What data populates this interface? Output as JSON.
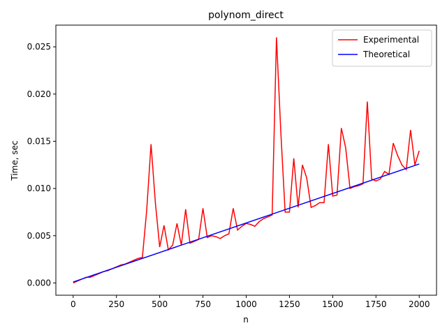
{
  "chart_data": {
    "type": "line",
    "title": "polynom_direct",
    "xlabel": "n",
    "ylabel": "Time, sec",
    "xlim": [
      -100,
      2100
    ],
    "xticks": [
      0,
      250,
      500,
      750,
      1000,
      1250,
      1500,
      1750,
      2000
    ],
    "ylim": [
      -0.0013,
      0.0273
    ],
    "yticks": [
      {
        "value": 0,
        "label": "0.000"
      },
      {
        "value": 0.005,
        "label": "0.005"
      },
      {
        "value": 0.01,
        "label": "0.010"
      },
      {
        "value": 0.015,
        "label": "0.015"
      },
      {
        "value": 0.02,
        "label": "0.020"
      },
      {
        "value": 0.025,
        "label": "0.025"
      }
    ],
    "legend": "upper right",
    "series": [
      {
        "name": "Experimental",
        "color": "#ff0000",
        "x": [
          0,
          25,
          50,
          75,
          100,
          125,
          150,
          175,
          200,
          225,
          250,
          275,
          300,
          325,
          350,
          375,
          400,
          425,
          450,
          475,
          500,
          525,
          550,
          575,
          600,
          625,
          650,
          675,
          700,
          725,
          750,
          775,
          800,
          825,
          850,
          875,
          900,
          925,
          950,
          975,
          1000,
          1025,
          1050,
          1075,
          1100,
          1125,
          1150,
          1175,
          1200,
          1225,
          1250,
          1275,
          1300,
          1325,
          1350,
          1375,
          1400,
          1425,
          1450,
          1475,
          1500,
          1525,
          1550,
          1575,
          1600,
          1625,
          1650,
          1675,
          1700,
          1725,
          1750,
          1775,
          1800,
          1825,
          1850,
          1875,
          1900,
          1925,
          1950,
          1975,
          2000
        ],
        "values": [
          0.0,
          0.0002,
          0.0004,
          0.0006,
          0.0006,
          0.0008,
          0.001,
          0.0012,
          0.0013,
          0.0015,
          0.0017,
          0.0019,
          0.002,
          0.0022,
          0.0024,
          0.0026,
          0.0027,
          0.0077,
          0.0147,
          0.0085,
          0.0038,
          0.0061,
          0.0035,
          0.004,
          0.0063,
          0.004,
          0.0078,
          0.0042,
          0.0044,
          0.0046,
          0.0079,
          0.0048,
          0.005,
          0.0049,
          0.0047,
          0.005,
          0.0052,
          0.0079,
          0.0056,
          0.006,
          0.0063,
          0.0062,
          0.006,
          0.0065,
          0.0068,
          0.007,
          0.0072,
          0.026,
          0.016,
          0.0075,
          0.0075,
          0.0132,
          0.008,
          0.0125,
          0.0111,
          0.008,
          0.0082,
          0.0085,
          0.0085,
          0.0147,
          0.0092,
          0.0093,
          0.0164,
          0.0143,
          0.01,
          0.0102,
          0.0103,
          0.0105,
          0.0192,
          0.011,
          0.0108,
          0.011,
          0.0118,
          0.0115,
          0.0148,
          0.0135,
          0.0125,
          0.012,
          0.0162,
          0.0125,
          0.014
        ]
      },
      {
        "name": "Theoretical",
        "color": "#0000ff",
        "x": [
          0,
          2000
        ],
        "values": [
          0.0001,
          0.0126
        ]
      }
    ]
  }
}
